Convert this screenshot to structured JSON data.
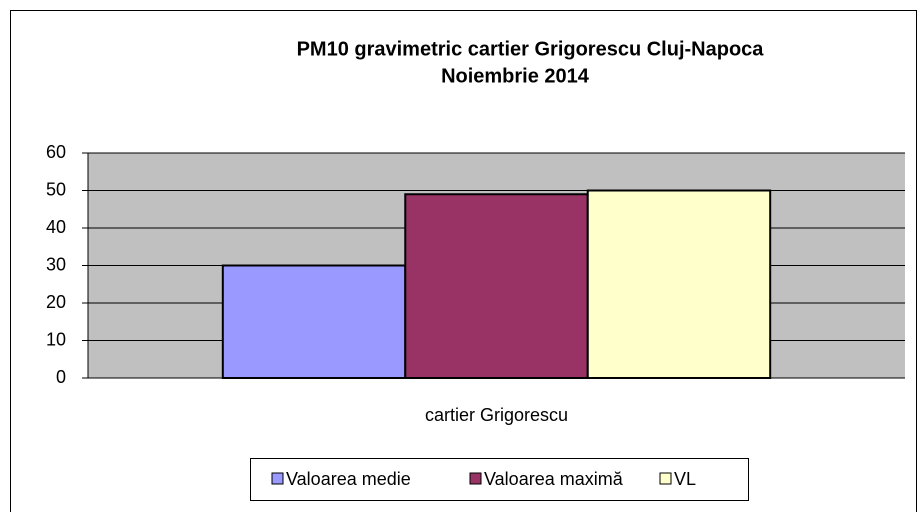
{
  "chart_data": {
    "type": "bar",
    "title": [
      "PM10 gravimetric cartier Grigorescu Cluj-Napoca",
      "Noiembrie 2014"
    ],
    "categories": [
      "cartier Grigorescu"
    ],
    "series": [
      {
        "name": "Valoarea medie",
        "color": "#9999ff",
        "values": [
          30
        ]
      },
      {
        "name": "Valoarea maximă",
        "color": "#993366",
        "values": [
          49
        ]
      },
      {
        "name": "VL",
        "color": "#ffffcc",
        "values": [
          50
        ]
      }
    ],
    "ylim": [
      0,
      60
    ],
    "yticks": [
      0,
      10,
      20,
      30,
      40,
      50,
      60
    ],
    "grid": true,
    "legend": "bottom"
  }
}
